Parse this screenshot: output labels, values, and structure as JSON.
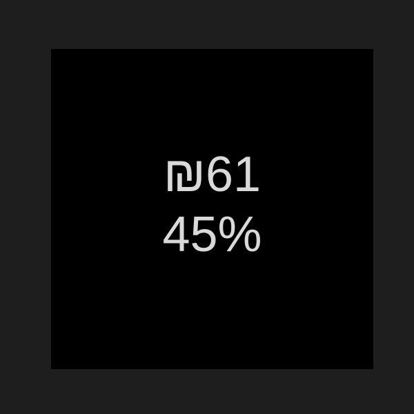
{
  "display": {
    "price": "₪61",
    "percent": "45%"
  },
  "colors": {
    "background": "#1e1e1e",
    "panel": "#000000",
    "text": "#d9d9d9"
  }
}
